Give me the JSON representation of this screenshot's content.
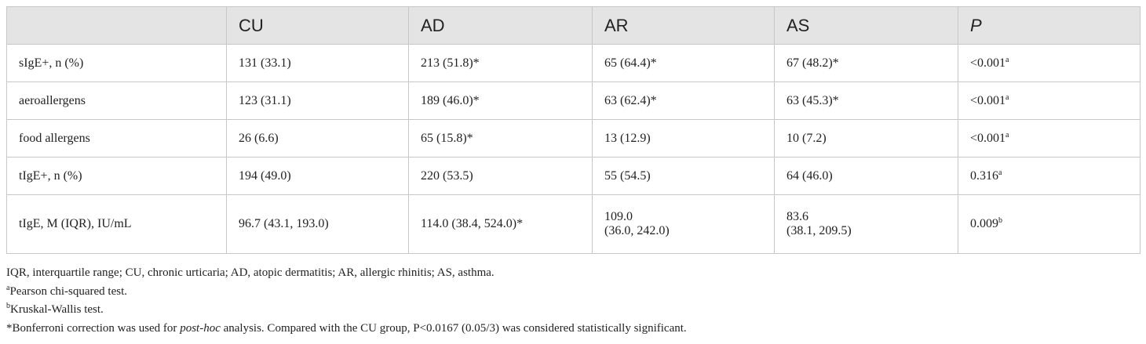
{
  "table": {
    "header": [
      "CU",
      "AD",
      "AR",
      "AS",
      "P"
    ],
    "rows": [
      {
        "label": "sIgE+, n (%)",
        "cells": [
          {
            "text": "131 (33.1)"
          },
          {
            "text": "213 (51.8)*"
          },
          {
            "text": "65 (64.4)*"
          },
          {
            "text": "67 (48.2)*"
          },
          {
            "text": "<0.001",
            "sup": "a"
          }
        ]
      },
      {
        "label": "aeroallergens",
        "cells": [
          {
            "text": "123 (31.1)"
          },
          {
            "text": "189 (46.0)*"
          },
          {
            "text": "63 (62.4)*"
          },
          {
            "text": "63 (45.3)*"
          },
          {
            "text": "<0.001",
            "sup": "a"
          }
        ]
      },
      {
        "label": "food allergens",
        "cells": [
          {
            "text": "26 (6.6)"
          },
          {
            "text": "65 (15.8)*"
          },
          {
            "text": "13 (12.9)"
          },
          {
            "text": "10 (7.2)"
          },
          {
            "text": "<0.001",
            "sup": "a"
          }
        ]
      },
      {
        "label": "tIgE+, n (%)",
        "cells": [
          {
            "text": "194 (49.0)"
          },
          {
            "text": "220 (53.5)"
          },
          {
            "text": "55 (54.5)"
          },
          {
            "text": "64 (46.0)"
          },
          {
            "text": "0.316",
            "sup": "a"
          }
        ]
      },
      {
        "label": "tIgE, M (IQR), IU/mL",
        "cells": [
          {
            "text": "96.7 (43.1, 193.0)"
          },
          {
            "text": "114.0 (38.4, 524.0)*"
          },
          {
            "text": [
              "109.0",
              "(36.0, 242.0)"
            ]
          },
          {
            "text": [
              "83.6",
              "(38.1, 209.5)"
            ]
          },
          {
            "text": "0.009",
            "sup": "b"
          }
        ]
      }
    ]
  },
  "footnotes": [
    {
      "text": "IQR, interquartile range; CU, chronic urticaria; AD, atopic dermatitis; AR, allergic rhinitis; AS, asthma."
    },
    {
      "sup": "a",
      "text": "Pearson chi-squared test."
    },
    {
      "sup": "b",
      "text": "Kruskal-Wallis test."
    },
    {
      "text": "*Bonferroni correction was used for ",
      "italic": "post-hoc",
      "rest": " analysis. Compared with the CU group, P<0.0167 (0.05/3) was considered statistically significant."
    }
  ]
}
